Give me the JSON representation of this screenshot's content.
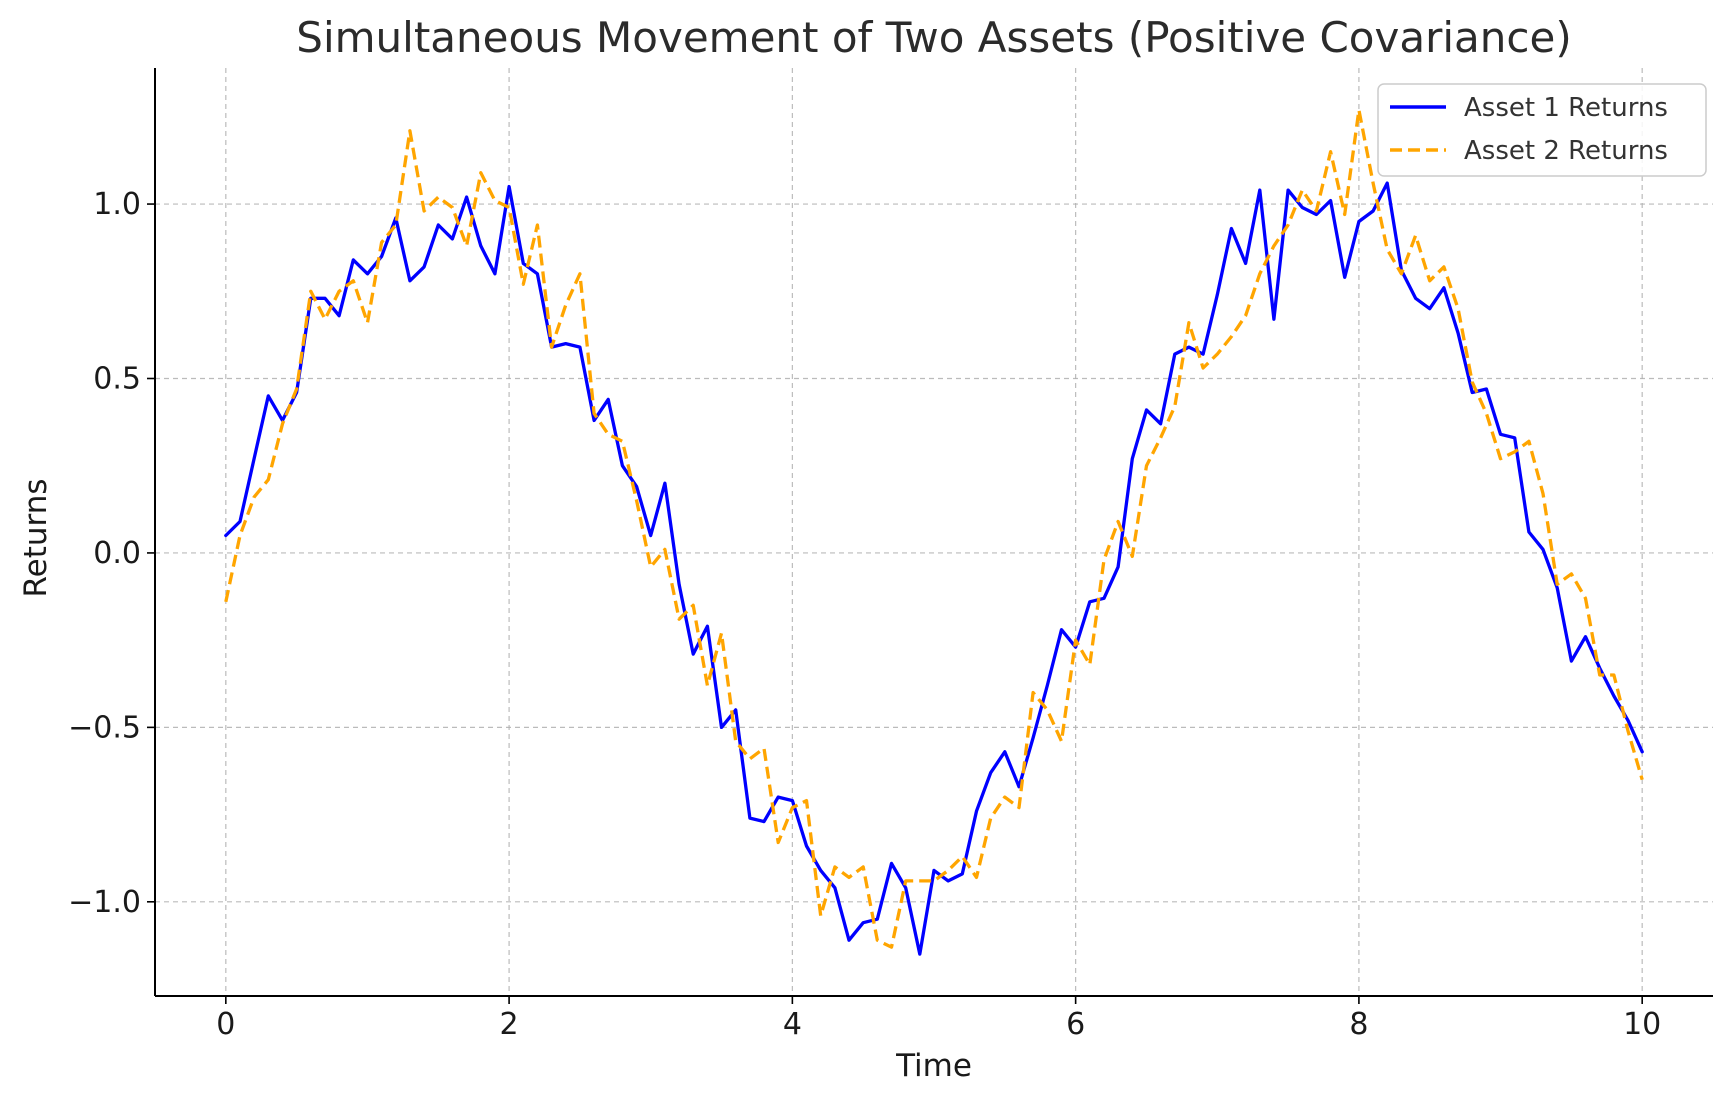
{
  "chart_data": {
    "type": "line",
    "title": "Simultaneous Movement of Two Assets (Positive Covariance)",
    "xlabel": "Time",
    "ylabel": "Returns",
    "xlim": [
      -0.5,
      10.5
    ],
    "ylim": [
      -1.27,
      1.39
    ],
    "xticks": [
      0,
      2,
      4,
      6,
      8,
      10
    ],
    "xtick_labels": [
      "0",
      "2",
      "4",
      "6",
      "8",
      "10"
    ],
    "yticks": [
      -1.0,
      -0.5,
      0.0,
      0.5,
      1.0
    ],
    "ytick_labels": [
      "−1.0",
      "−0.5",
      "0.0",
      "0.5",
      "1.0"
    ],
    "grid": true,
    "legend_position": "top-right",
    "x": [
      0.0,
      0.1,
      0.2,
      0.3,
      0.4,
      0.5,
      0.6,
      0.7,
      0.8,
      0.9,
      1.0,
      1.1,
      1.2,
      1.3,
      1.4,
      1.5,
      1.6,
      1.7,
      1.8,
      1.9,
      2.0,
      2.1,
      2.2,
      2.3,
      2.4,
      2.5,
      2.6,
      2.7,
      2.8,
      2.9,
      3.0,
      3.1,
      3.2,
      3.3,
      3.4,
      3.5,
      3.6,
      3.7,
      3.8,
      3.9,
      4.0,
      4.1,
      4.2,
      4.3,
      4.4,
      4.5,
      4.6,
      4.7,
      4.8,
      4.9,
      5.0,
      5.1,
      5.2,
      5.3,
      5.4,
      5.5,
      5.6,
      5.7,
      5.8,
      5.9,
      6.0,
      6.1,
      6.2,
      6.3,
      6.4,
      6.5,
      6.6,
      6.7,
      6.8,
      6.9,
      7.0,
      7.1,
      7.2,
      7.3,
      7.4,
      7.5,
      7.6,
      7.7,
      7.8,
      7.9,
      8.0,
      8.1,
      8.2,
      8.3,
      8.4,
      8.5,
      8.6,
      8.7,
      8.8,
      8.9,
      9.0,
      9.1,
      9.2,
      9.3,
      9.4,
      9.5,
      9.6,
      9.7,
      9.8,
      9.9,
      10.0
    ],
    "series": [
      {
        "name": "Asset 1 Returns",
        "color": "#0000ff",
        "style": "solid",
        "values": [
          0.05,
          0.09,
          0.27,
          0.45,
          0.38,
          0.46,
          0.73,
          0.73,
          0.68,
          0.84,
          0.8,
          0.85,
          0.96,
          0.78,
          0.82,
          0.94,
          0.9,
          1.02,
          0.88,
          0.8,
          1.05,
          0.83,
          0.8,
          0.59,
          0.6,
          0.59,
          0.38,
          0.44,
          0.25,
          0.19,
          0.05,
          0.2,
          -0.09,
          -0.29,
          -0.21,
          -0.5,
          -0.45,
          -0.76,
          -0.77,
          -0.7,
          -0.71,
          -0.84,
          -0.91,
          -0.96,
          -1.11,
          -1.06,
          -1.05,
          -0.89,
          -0.96,
          -1.15,
          -0.91,
          -0.94,
          -0.92,
          -0.74,
          -0.63,
          -0.57,
          -0.67,
          -0.53,
          -0.38,
          -0.22,
          -0.27,
          -0.14,
          -0.13,
          -0.04,
          0.27,
          0.41,
          0.37,
          0.57,
          0.59,
          0.57,
          0.74,
          0.93,
          0.83,
          1.04,
          0.67,
          1.04,
          0.99,
          0.97,
          1.01,
          0.79,
          0.95,
          0.98,
          1.06,
          0.81,
          0.73,
          0.7,
          0.76,
          0.63,
          0.46,
          0.47,
          0.34,
          0.33,
          0.06,
          0.01,
          -0.1,
          -0.31,
          -0.24,
          -0.33,
          -0.41,
          -0.48,
          -0.57
        ]
      },
      {
        "name": "Asset 2 Returns",
        "color": "#ffa500",
        "style": "dashed",
        "values": [
          -0.14,
          0.05,
          0.16,
          0.21,
          0.37,
          0.47,
          0.75,
          0.67,
          0.75,
          0.78,
          0.66,
          0.89,
          0.94,
          1.21,
          0.98,
          1.02,
          0.99,
          0.88,
          1.09,
          1.01,
          0.99,
          0.77,
          0.94,
          0.59,
          0.71,
          0.8,
          0.4,
          0.34,
          0.32,
          0.15,
          -0.04,
          0.01,
          -0.19,
          -0.15,
          -0.38,
          -0.23,
          -0.54,
          -0.59,
          -0.56,
          -0.83,
          -0.73,
          -0.71,
          -1.04,
          -0.9,
          -0.93,
          -0.9,
          -1.11,
          -1.13,
          -0.94,
          -0.94,
          -0.94,
          -0.91,
          -0.87,
          -0.93,
          -0.76,
          -0.7,
          -0.73,
          -0.4,
          -0.45,
          -0.54,
          -0.25,
          -0.32,
          -0.02,
          0.09,
          -0.01,
          0.25,
          0.33,
          0.42,
          0.66,
          0.53,
          0.57,
          0.62,
          0.68,
          0.8,
          0.88,
          0.94,
          1.04,
          0.98,
          1.15,
          0.97,
          1.27,
          1.06,
          0.87,
          0.8,
          0.91,
          0.78,
          0.82,
          0.7,
          0.49,
          0.4,
          0.27,
          0.29,
          0.32,
          0.17,
          -0.09,
          -0.06,
          -0.13,
          -0.35,
          -0.35,
          -0.51,
          -0.65
        ]
      }
    ]
  }
}
